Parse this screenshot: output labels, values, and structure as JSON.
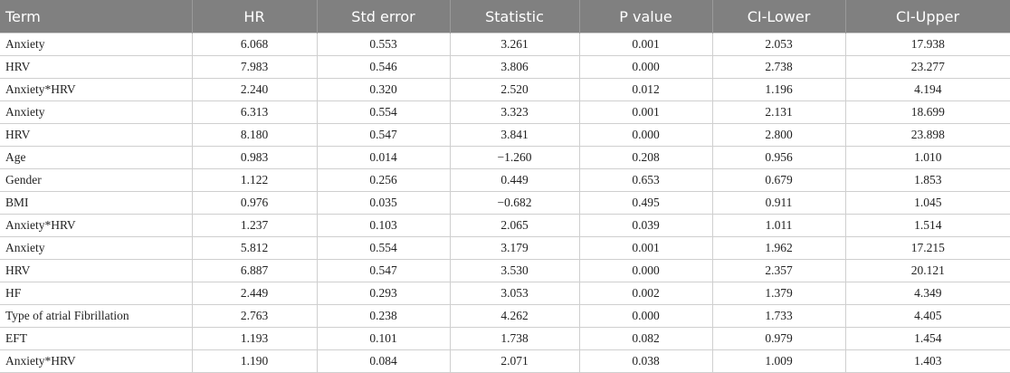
{
  "table": {
    "header": [
      "Term",
      "HR",
      "Std error",
      "Statistic",
      "P value",
      "CI-Lower",
      "CI-Upper"
    ],
    "rows": [
      [
        "Anxiety",
        "6.068",
        "0.553",
        "3.261",
        "0.001",
        "2.053",
        "17.938"
      ],
      [
        "HRV",
        "7.983",
        "0.546",
        "3.806",
        "0.000",
        "2.738",
        "23.277"
      ],
      [
        "Anxiety*HRV",
        "2.240",
        "0.320",
        "2.520",
        "0.012",
        "1.196",
        "4.194"
      ],
      [
        "Anxiety",
        "6.313",
        "0.554",
        "3.323",
        "0.001",
        "2.131",
        "18.699"
      ],
      [
        "HRV",
        "8.180",
        "0.547",
        "3.841",
        "0.000",
        "2.800",
        "23.898"
      ],
      [
        "Age",
        "0.983",
        "0.014",
        "−1.260",
        "0.208",
        "0.956",
        "1.010"
      ],
      [
        "Gender",
        "1.122",
        "0.256",
        "0.449",
        "0.653",
        "0.679",
        "1.853"
      ],
      [
        "BMI",
        "0.976",
        "0.035",
        "−0.682",
        "0.495",
        "0.911",
        "1.045"
      ],
      [
        "Anxiety*HRV",
        "1.237",
        "0.103",
        "2.065",
        "0.039",
        "1.011",
        "1.514"
      ],
      [
        "Anxiety",
        "5.812",
        "0.554",
        "3.179",
        "0.001",
        "1.962",
        "17.215"
      ],
      [
        "HRV",
        "6.887",
        "0.547",
        "3.530",
        "0.000",
        "2.357",
        "20.121"
      ],
      [
        "HF",
        "2.449",
        "0.293",
        "3.053",
        "0.002",
        "1.379",
        "4.349"
      ],
      [
        "Type of atrial Fibrillation",
        "2.763",
        "0.238",
        "4.262",
        "0.000",
        "1.733",
        "4.405"
      ],
      [
        "EFT",
        "1.193",
        "0.101",
        "1.738",
        "0.082",
        "0.979",
        "1.454"
      ],
      [
        "Anxiety*HRV",
        "1.190",
        "0.084",
        "2.071",
        "0.038",
        "1.009",
        "1.403"
      ]
    ]
  }
}
